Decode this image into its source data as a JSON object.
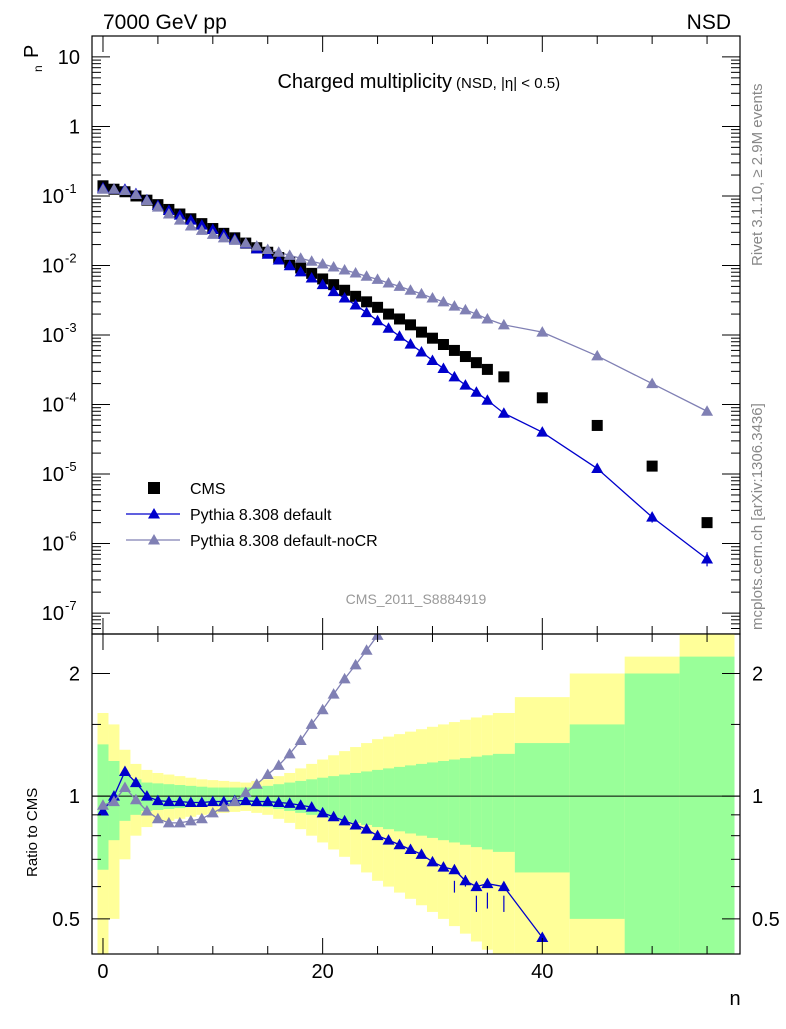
{
  "header": {
    "left_title": "7000 GeV pp",
    "right_title": "NSD",
    "plot_title_main": "Charged multiplicity",
    "plot_title_sub": "(NSD, |η| < 0.5)",
    "analysis_id": "CMS_2011_S8884919",
    "side_rivet": "Rivet 3.1.10, ≥ 2.9M events",
    "side_mcplots": "mcplots.cern.ch [arXiv:1306.3436]"
  },
  "chart_data": [
    {
      "type": "scatter",
      "name": "main",
      "ylabel": "P",
      "ylabel_sub": "n",
      "yscale": "log",
      "xlim": [
        -1,
        58
      ],
      "ylim": [
        5e-08,
        20
      ],
      "y_ticks": [
        {
          "v": 10,
          "label": "10"
        },
        {
          "v": 1,
          "label": "1"
        },
        {
          "v": 0.1,
          "label": "10",
          "exp": "-1"
        },
        {
          "v": 0.01,
          "label": "10",
          "exp": "-2"
        },
        {
          "v": 0.001,
          "label": "10",
          "exp": "-3"
        },
        {
          "v": 0.0001,
          "label": "10",
          "exp": "-4"
        },
        {
          "v": 1e-05,
          "label": "10",
          "exp": "-5"
        },
        {
          "v": 1e-06,
          "label": "10",
          "exp": "-6"
        },
        {
          "v": 1e-07,
          "label": "10",
          "exp": "-7"
        }
      ],
      "series": [
        {
          "name": "CMS",
          "marker": "square",
          "color": "#000000",
          "x": [
            0,
            1,
            2,
            3,
            4,
            5,
            6,
            7,
            8,
            9,
            10,
            11,
            12,
            13,
            14,
            15,
            16,
            17,
            18,
            19,
            20,
            21,
            22,
            23,
            24,
            25,
            26,
            27,
            28,
            29,
            30,
            31,
            32,
            33,
            34,
            35,
            36.5,
            40,
            45,
            50,
            55
          ],
          "y": [
            0.14,
            0.125,
            0.115,
            0.1,
            0.087,
            0.075,
            0.064,
            0.055,
            0.047,
            0.04,
            0.034,
            0.029,
            0.025,
            0.021,
            0.018,
            0.0155,
            0.013,
            0.011,
            0.0092,
            0.0077,
            0.0064,
            0.0053,
            0.0044,
            0.0036,
            0.003,
            0.0025,
            0.002,
            0.0017,
            0.0014,
            0.0011,
            0.0009,
            0.00073,
            0.0006,
            0.00049,
            0.0004,
            0.00032,
            0.00025,
            0.000125,
            5e-05,
            1.3e-05,
            2e-06
          ]
        },
        {
          "name": "Pythia 8.308 default",
          "marker": "triangle",
          "color": "#0000cc",
          "x": [
            0,
            1,
            2,
            3,
            4,
            5,
            6,
            7,
            8,
            9,
            10,
            11,
            12,
            13,
            14,
            15,
            16,
            17,
            18,
            19,
            20,
            21,
            22,
            23,
            24,
            25,
            26,
            27,
            28,
            29,
            30,
            31,
            32,
            33,
            34,
            35,
            36.5,
            40,
            45,
            50,
            55
          ],
          "y": [
            0.13,
            0.125,
            0.125,
            0.108,
            0.088,
            0.073,
            0.062,
            0.053,
            0.045,
            0.038,
            0.033,
            0.028,
            0.024,
            0.0205,
            0.0173,
            0.0145,
            0.012,
            0.0099,
            0.0081,
            0.0066,
            0.0053,
            0.0042,
            0.0034,
            0.0027,
            0.0021,
            0.0016,
            0.00125,
            0.00096,
            0.00074,
            0.00057,
            0.00043,
            0.00033,
            0.00025,
            0.00019,
            0.00015,
            0.000115,
            7.5e-05,
            4e-05,
            1.2e-05,
            2.4e-06,
            6e-07
          ]
        },
        {
          "name": "Pythia 8.308 default-noCR",
          "marker": "triangle",
          "color": "#8080b4",
          "x": [
            0,
            1,
            2,
            3,
            4,
            5,
            6,
            7,
            8,
            9,
            10,
            11,
            12,
            13,
            14,
            15,
            16,
            17,
            18,
            19,
            20,
            21,
            22,
            23,
            24,
            25,
            26,
            27,
            28,
            29,
            30,
            31,
            32,
            33,
            34,
            35,
            36.5,
            40,
            45,
            50,
            55
          ],
          "y": [
            0.125,
            0.125,
            0.12,
            0.105,
            0.086,
            0.069,
            0.055,
            0.045,
            0.037,
            0.032,
            0.028,
            0.025,
            0.023,
            0.021,
            0.019,
            0.017,
            0.0155,
            0.014,
            0.0127,
            0.0115,
            0.0105,
            0.0095,
            0.0086,
            0.0078,
            0.007,
            0.0063,
            0.0056,
            0.005,
            0.0044,
            0.0039,
            0.0034,
            0.003,
            0.0026,
            0.0023,
            0.002,
            0.0017,
            0.0014,
            0.0011,
            0.0005,
            0.0002,
            8e-05
          ]
        }
      ],
      "legend_position": "bottom-left"
    },
    {
      "type": "line",
      "name": "ratio",
      "ylabel": "Ratio to CMS",
      "xlabel": "n",
      "yscale": "log",
      "xlim": [
        -1,
        58
      ],
      "ylim": [
        0.41,
        2.5
      ],
      "x_ticks": [
        0,
        20,
        40
      ],
      "y_ticks": [
        {
          "v": 0.5,
          "label": "0.5"
        },
        {
          "v": 1,
          "label": "1"
        },
        {
          "v": 2,
          "label": "2"
        }
      ],
      "bands": {
        "edges": [
          -0.5,
          0.5,
          1.5,
          2.5,
          3.5,
          4.5,
          5.5,
          6.5,
          7.5,
          8.5,
          9.5,
          10.5,
          11.5,
          12.5,
          13.5,
          14.5,
          15.5,
          16.5,
          17.5,
          18.5,
          19.5,
          20.5,
          21.5,
          22.5,
          23.5,
          24.5,
          25.5,
          26.5,
          27.5,
          28.5,
          29.5,
          30.5,
          31.5,
          32.5,
          33.5,
          34.5,
          35.5,
          37.5,
          42.5,
          47.5,
          52.5,
          57.5
        ],
        "inner": [
          0.34,
          0.22,
          0.13,
          0.1,
          0.08,
          0.075,
          0.07,
          0.065,
          0.06,
          0.055,
          0.05,
          0.05,
          0.05,
          0.05,
          0.055,
          0.06,
          0.07,
          0.08,
          0.09,
          0.1,
          0.11,
          0.12,
          0.13,
          0.14,
          0.15,
          0.16,
          0.17,
          0.18,
          0.19,
          0.2,
          0.21,
          0.22,
          0.23,
          0.24,
          0.25,
          0.26,
          0.27,
          0.35,
          0.5,
          1.0,
          1.2
        ],
        "outer": [
          0.6,
          0.5,
          0.3,
          0.2,
          0.16,
          0.14,
          0.13,
          0.12,
          0.11,
          0.1,
          0.095,
          0.09,
          0.085,
          0.08,
          0.09,
          0.1,
          0.12,
          0.14,
          0.17,
          0.2,
          0.23,
          0.26,
          0.29,
          0.32,
          0.35,
          0.38,
          0.4,
          0.42,
          0.44,
          0.46,
          0.48,
          0.5,
          0.52,
          0.54,
          0.56,
          0.58,
          0.6,
          0.75,
          1.0,
          1.2,
          1.5
        ]
      },
      "band_colors": {
        "inner": "#99ff99",
        "outer": "#ffff99"
      },
      "series": [
        {
          "name": "Pythia 8.308 default",
          "color": "#0000cc",
          "x": [
            0,
            1,
            2,
            3,
            4,
            5,
            6,
            7,
            8,
            9,
            10,
            11,
            12,
            13,
            14,
            15,
            16,
            17,
            18,
            19,
            20,
            21,
            22,
            23,
            24,
            25,
            26,
            27,
            28,
            29,
            30,
            31,
            32,
            33,
            34,
            35,
            36.5,
            40
          ],
          "y": [
            0.92,
            1.0,
            1.15,
            1.08,
            1.0,
            0.975,
            0.97,
            0.97,
            0.965,
            0.965,
            0.97,
            0.97,
            0.975,
            0.975,
            0.97,
            0.97,
            0.965,
            0.96,
            0.95,
            0.94,
            0.91,
            0.89,
            0.87,
            0.85,
            0.83,
            0.8,
            0.78,
            0.76,
            0.74,
            0.72,
            0.69,
            0.67,
            0.66,
            0.62,
            0.6,
            0.61,
            0.6,
            0.45
          ]
        },
        {
          "name": "Pythia 8.308 default-noCR",
          "color": "#8080b4",
          "x": [
            0,
            1,
            2,
            3,
            4,
            5,
            6,
            7,
            8,
            9,
            10,
            11,
            12,
            13,
            14,
            15,
            16,
            17,
            18,
            19,
            20,
            21,
            22,
            23,
            24,
            25
          ],
          "y": [
            0.95,
            0.97,
            1.05,
            0.98,
            0.92,
            0.88,
            0.86,
            0.86,
            0.87,
            0.88,
            0.91,
            0.94,
            0.97,
            1.02,
            1.07,
            1.13,
            1.19,
            1.27,
            1.37,
            1.5,
            1.63,
            1.78,
            1.94,
            2.1,
            2.28,
            2.48
          ]
        }
      ]
    }
  ]
}
